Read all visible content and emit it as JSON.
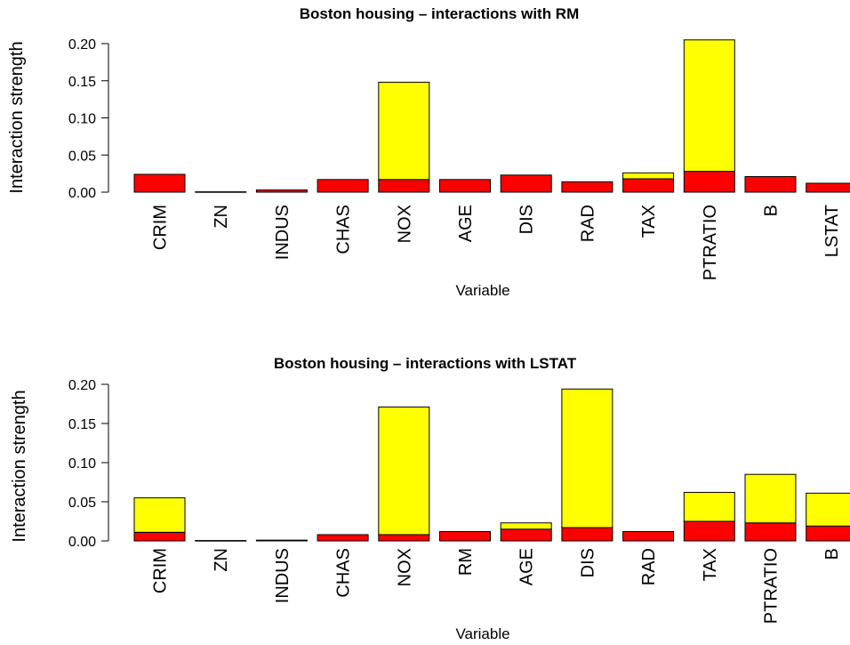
{
  "chart_data": [
    {
      "type": "bar",
      "stacked": true,
      "title": "Boston housing  –  interactions with RM",
      "xlabel": "Variable",
      "ylabel": "Interaction strength",
      "ylim": [
        0,
        0.205
      ],
      "yticks": [
        "0.00",
        "0.05",
        "0.10",
        "0.15",
        "0.20"
      ],
      "yticks_values": [
        0,
        0.05,
        0.1,
        0.15,
        0.2
      ],
      "categories": [
        "CRIM",
        "ZN",
        "INDUS",
        "CHAS",
        "NOX",
        "AGE",
        "DIS",
        "RAD",
        "TAX",
        "PTRATIO",
        "B",
        "LSTAT"
      ],
      "series": [
        {
          "color": "#ff0000",
          "values": [
            0.024,
            0.0005,
            0.003,
            0.017,
            0.017,
            0.017,
            0.023,
            0.014,
            0.018,
            0.028,
            0.021,
            0.012
          ]
        },
        {
          "color": "#ffff00",
          "values": [
            0.0,
            0.0,
            0.0,
            0.0,
            0.131,
            0.0,
            0.0,
            0.0,
            0.008,
            0.177,
            0.0,
            0.0
          ]
        }
      ]
    },
    {
      "type": "bar",
      "stacked": true,
      "title": "Boston housing  –  interactions with LSTAT",
      "xlabel": "Variable",
      "ylabel": "Interaction strength",
      "ylim": [
        0,
        0.195
      ],
      "yticks": [
        "0.00",
        "0.05",
        "0.10",
        "0.15",
        "0.20"
      ],
      "yticks_values": [
        0,
        0.05,
        0.1,
        0.15,
        0.2
      ],
      "categories": [
        "CRIM",
        "ZN",
        "INDUS",
        "CHAS",
        "NOX",
        "RM",
        "AGE",
        "DIS",
        "RAD",
        "TAX",
        "PTRATIO",
        "B"
      ],
      "series": [
        {
          "color": "#ff0000",
          "values": [
            0.011,
            0.0005,
            0.001,
            0.008,
            0.008,
            0.012,
            0.015,
            0.017,
            0.012,
            0.025,
            0.023,
            0.019
          ]
        },
        {
          "color": "#ffff00",
          "values": [
            0.044,
            0.0,
            0.0,
            0.0,
            0.163,
            0.0,
            0.008,
            0.177,
            0.0,
            0.037,
            0.062,
            0.042
          ]
        }
      ]
    }
  ]
}
